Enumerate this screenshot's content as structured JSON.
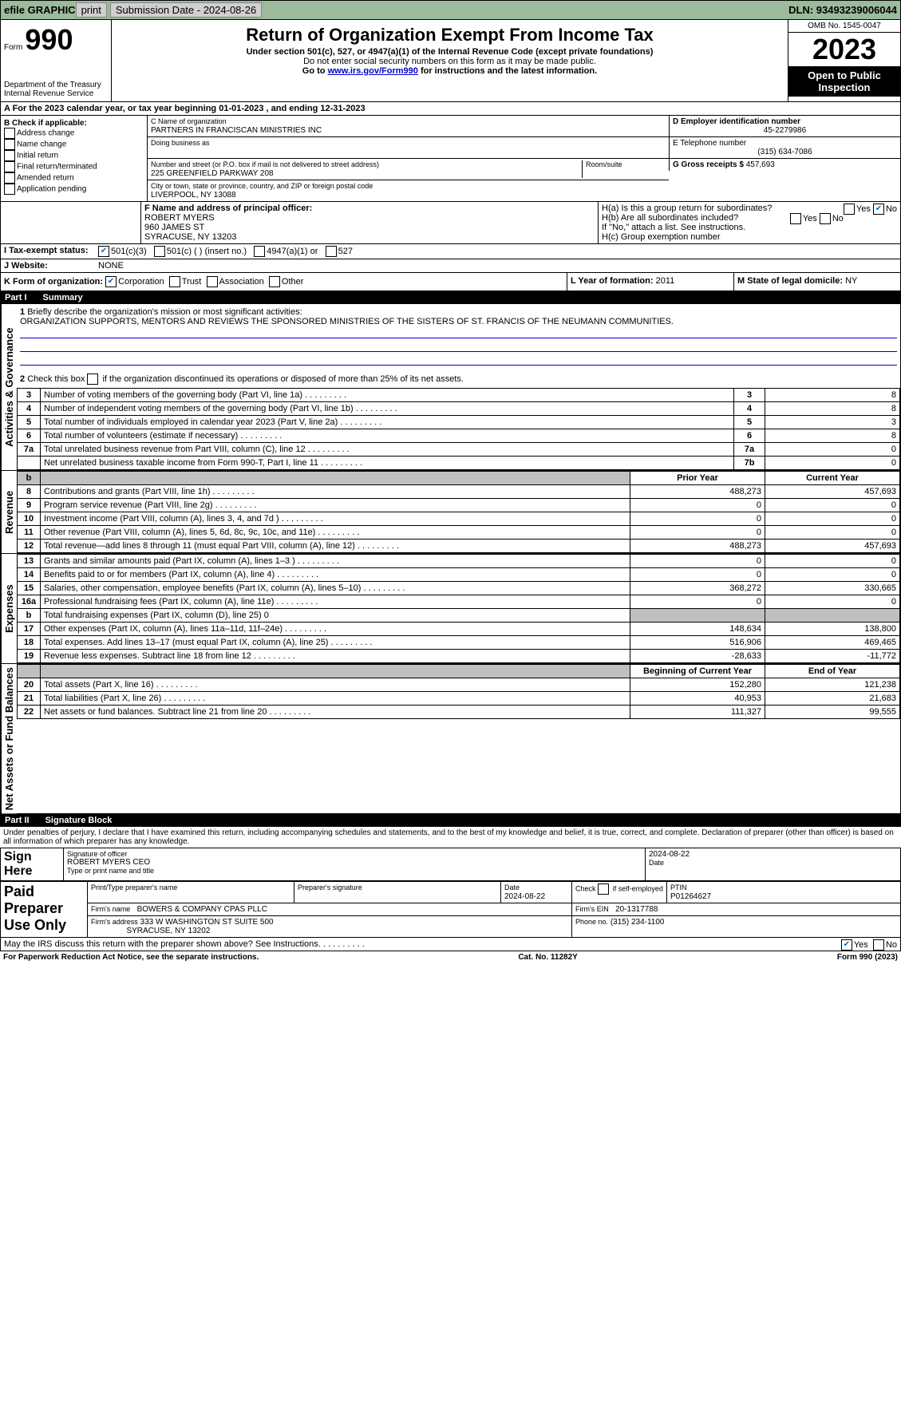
{
  "topbar": {
    "efile": "efile GRAPHIC",
    "print": "print",
    "submission_label": "Submission Date - 2024-08-26",
    "dln_label": "DLN: 93493239006044"
  },
  "header": {
    "form_prefix": "Form",
    "form_number": "990",
    "dept": "Department of the Treasury",
    "irs": "Internal Revenue Service",
    "title": "Return of Organization Exempt From Income Tax",
    "subtitle1": "Under section 501(c), 527, or 4947(a)(1) of the Internal Revenue Code (except private foundations)",
    "subtitle2": "Do not enter social security numbers on this form as it may be made public.",
    "subtitle3_pre": "Go to ",
    "subtitle3_link": "www.irs.gov/Form990",
    "subtitle3_post": " for instructions and the latest information.",
    "omb": "OMB No. 1545-0047",
    "year": "2023",
    "inspect": "Open to Public Inspection"
  },
  "line_a": {
    "text_pre": "A For the 2023 calendar year, or tax year beginning ",
    "begin": "01-01-2023",
    "mid": " , and ending ",
    "end": "12-31-2023"
  },
  "box_b": {
    "title": "B Check if applicable:",
    "opts": [
      "Address change",
      "Name change",
      "Initial return",
      "Final return/terminated",
      "Amended return",
      "Application pending"
    ]
  },
  "box_c": {
    "name_label": "C Name of organization",
    "name": "PARTNERS IN FRANCISCAN MINISTRIES INC",
    "dba_label": "Doing business as",
    "street_label": "Number and street (or P.O. box if mail is not delivered to street address)",
    "room_label": "Room/suite",
    "street": "225 GREENFIELD PARKWAY 208",
    "city_label": "City or town, state or province, country, and ZIP or foreign postal code",
    "city": "LIVERPOOL, NY  13088"
  },
  "box_d": {
    "label": "D Employer identification number",
    "value": "45-2279986"
  },
  "box_e": {
    "label": "E Telephone number",
    "value": "(315) 634-7086"
  },
  "box_g": {
    "label": "G Gross receipts $",
    "value": "457,693"
  },
  "box_f": {
    "label": "F Name and address of principal officer:",
    "line1": "ROBERT MYERS",
    "line2": "960 JAMES ST",
    "line3": "SYRACUSE, NY  13203"
  },
  "box_h": {
    "a": "H(a)  Is this a group return for subordinates?",
    "b": "H(b)  Are all subordinates included?",
    "b_note": "If \"No,\" attach a list. See instructions.",
    "c": "H(c)  Group exemption number ",
    "yes": "Yes",
    "no": "No"
  },
  "box_i": {
    "label": "I   Tax-exempt status:",
    "o1": "501(c)(3)",
    "o2": "501(c) (  ) (insert no.)",
    "o3": "4947(a)(1) or",
    "o4": "527"
  },
  "box_j": {
    "label": "J   Website:",
    "value": "NONE"
  },
  "box_k": {
    "label": "K Form of organization:",
    "o1": "Corporation",
    "o2": "Trust",
    "o3": "Association",
    "o4": "Other"
  },
  "box_l": {
    "label": "L Year of formation:",
    "value": "2011"
  },
  "box_m": {
    "label": "M State of legal domicile:",
    "value": "NY"
  },
  "part1": {
    "label": "Part I",
    "title": "Summary",
    "side_ag": "Activities & Governance",
    "side_rev": "Revenue",
    "side_exp": "Expenses",
    "side_na": "Net Assets or Fund Balances",
    "q1": "Briefly describe the organization's mission or most significant activities:",
    "mission": "ORGANIZATION SUPPORTS, MENTORS AND REVIEWS THE SPONSORED MINISTRIES OF THE SISTERS OF ST. FRANCIS OF THE NEUMANN COMMUNITIES.",
    "q2": "Check this box       if the organization discontinued its operations or disposed of more than 25% of its net assets.",
    "rows_ag": [
      {
        "n": "3",
        "t": "Number of voting members of the governing body (Part VI, line 1a)",
        "bn": "3",
        "v": "8"
      },
      {
        "n": "4",
        "t": "Number of independent voting members of the governing body (Part VI, line 1b)",
        "bn": "4",
        "v": "8"
      },
      {
        "n": "5",
        "t": "Total number of individuals employed in calendar year 2023 (Part V, line 2a)",
        "bn": "5",
        "v": "3"
      },
      {
        "n": "6",
        "t": "Total number of volunteers (estimate if necessary)",
        "bn": "6",
        "v": "8"
      },
      {
        "n": "7a",
        "t": "Total unrelated business revenue from Part VIII, column (C), line 12",
        "bn": "7a",
        "v": "0"
      },
      {
        "n": "",
        "t": "Net unrelated business taxable income from Form 990-T, Part I, line 11",
        "bn": "7b",
        "v": "0"
      }
    ],
    "col_py": "Prior Year",
    "col_cy": "Current Year",
    "rows_rev": [
      {
        "n": "8",
        "t": "Contributions and grants (Part VIII, line 1h)",
        "py": "488,273",
        "cy": "457,693"
      },
      {
        "n": "9",
        "t": "Program service revenue (Part VIII, line 2g)",
        "py": "0",
        "cy": "0"
      },
      {
        "n": "10",
        "t": "Investment income (Part VIII, column (A), lines 3, 4, and 7d )",
        "py": "0",
        "cy": "0"
      },
      {
        "n": "11",
        "t": "Other revenue (Part VIII, column (A), lines 5, 6d, 8c, 9c, 10c, and 11e)",
        "py": "0",
        "cy": "0"
      },
      {
        "n": "12",
        "t": "Total revenue—add lines 8 through 11 (must equal Part VIII, column (A), line 12)",
        "py": "488,273",
        "cy": "457,693"
      }
    ],
    "rows_exp": [
      {
        "n": "13",
        "t": "Grants and similar amounts paid (Part IX, column (A), lines 1–3 )",
        "py": "0",
        "cy": "0"
      },
      {
        "n": "14",
        "t": "Benefits paid to or for members (Part IX, column (A), line 4)",
        "py": "0",
        "cy": "0"
      },
      {
        "n": "15",
        "t": "Salaries, other compensation, employee benefits (Part IX, column (A), lines 5–10)",
        "py": "368,272",
        "cy": "330,665"
      },
      {
        "n": "16a",
        "t": "Professional fundraising fees (Part IX, column (A), line 11e)",
        "py": "0",
        "cy": "0"
      },
      {
        "n": "b",
        "t": "Total fundraising expenses (Part IX, column (D), line 25) 0",
        "py": "",
        "cy": "",
        "shaded": true
      },
      {
        "n": "17",
        "t": "Other expenses (Part IX, column (A), lines 11a–11d, 11f–24e)",
        "py": "148,634",
        "cy": "138,800"
      },
      {
        "n": "18",
        "t": "Total expenses. Add lines 13–17 (must equal Part IX, column (A), line 25)",
        "py": "516,906",
        "cy": "469,465"
      },
      {
        "n": "19",
        "t": "Revenue less expenses. Subtract line 18 from line 12",
        "py": "-28,633",
        "cy": "-11,772"
      }
    ],
    "col_bcy": "Beginning of Current Year",
    "col_eoy": "End of Year",
    "rows_na": [
      {
        "n": "20",
        "t": "Total assets (Part X, line 16)",
        "py": "152,280",
        "cy": "121,238"
      },
      {
        "n": "21",
        "t": "Total liabilities (Part X, line 26)",
        "py": "40,953",
        "cy": "21,683"
      },
      {
        "n": "22",
        "t": "Net assets or fund balances. Subtract line 21 from line 20",
        "py": "111,327",
        "cy": "99,555"
      }
    ]
  },
  "part2": {
    "label": "Part II",
    "title": "Signature Block",
    "decl": "Under penalties of perjury, I declare that I have examined this return, including accompanying schedules and statements, and to the best of my knowledge and belief, it is true, correct, and complete. Declaration of preparer (other than officer) is based on all information of which preparer has any knowledge.",
    "sign_here": "Sign Here",
    "sig_officer": "Signature of officer",
    "officer_name": "ROBERT MYERS  CEO",
    "type_name": "Type or print name and title",
    "date_label": "Date",
    "date1": "2024-08-22",
    "paid": "Paid Preparer Use Only",
    "prep_name_label": "Print/Type preparer's name",
    "prep_sig_label": "Preparer's signature",
    "date2": "2024-08-22",
    "check_self": "Check        if self-employed",
    "ptin_label": "PTIN",
    "ptin": "P01264627",
    "firm_name_label": "Firm's name",
    "firm_name": "BOWERS & COMPANY CPAS PLLC",
    "firm_ein_label": "Firm's EIN",
    "firm_ein": "20-1317788",
    "firm_addr_label": "Firm's address",
    "firm_addr1": "333 W WASHINGTON ST SUITE 500",
    "firm_addr2": "SYRACUSE, NY  13202",
    "phone_label": "Phone no.",
    "phone": "(315) 234-1100",
    "discuss": "May the IRS discuss this return with the preparer shown above? See Instructions.",
    "yes": "Yes",
    "no": "No"
  },
  "footer": {
    "left": "For Paperwork Reduction Act Notice, see the separate instructions.",
    "mid": "Cat. No. 11282Y",
    "right": "Form 990 (2023)"
  }
}
